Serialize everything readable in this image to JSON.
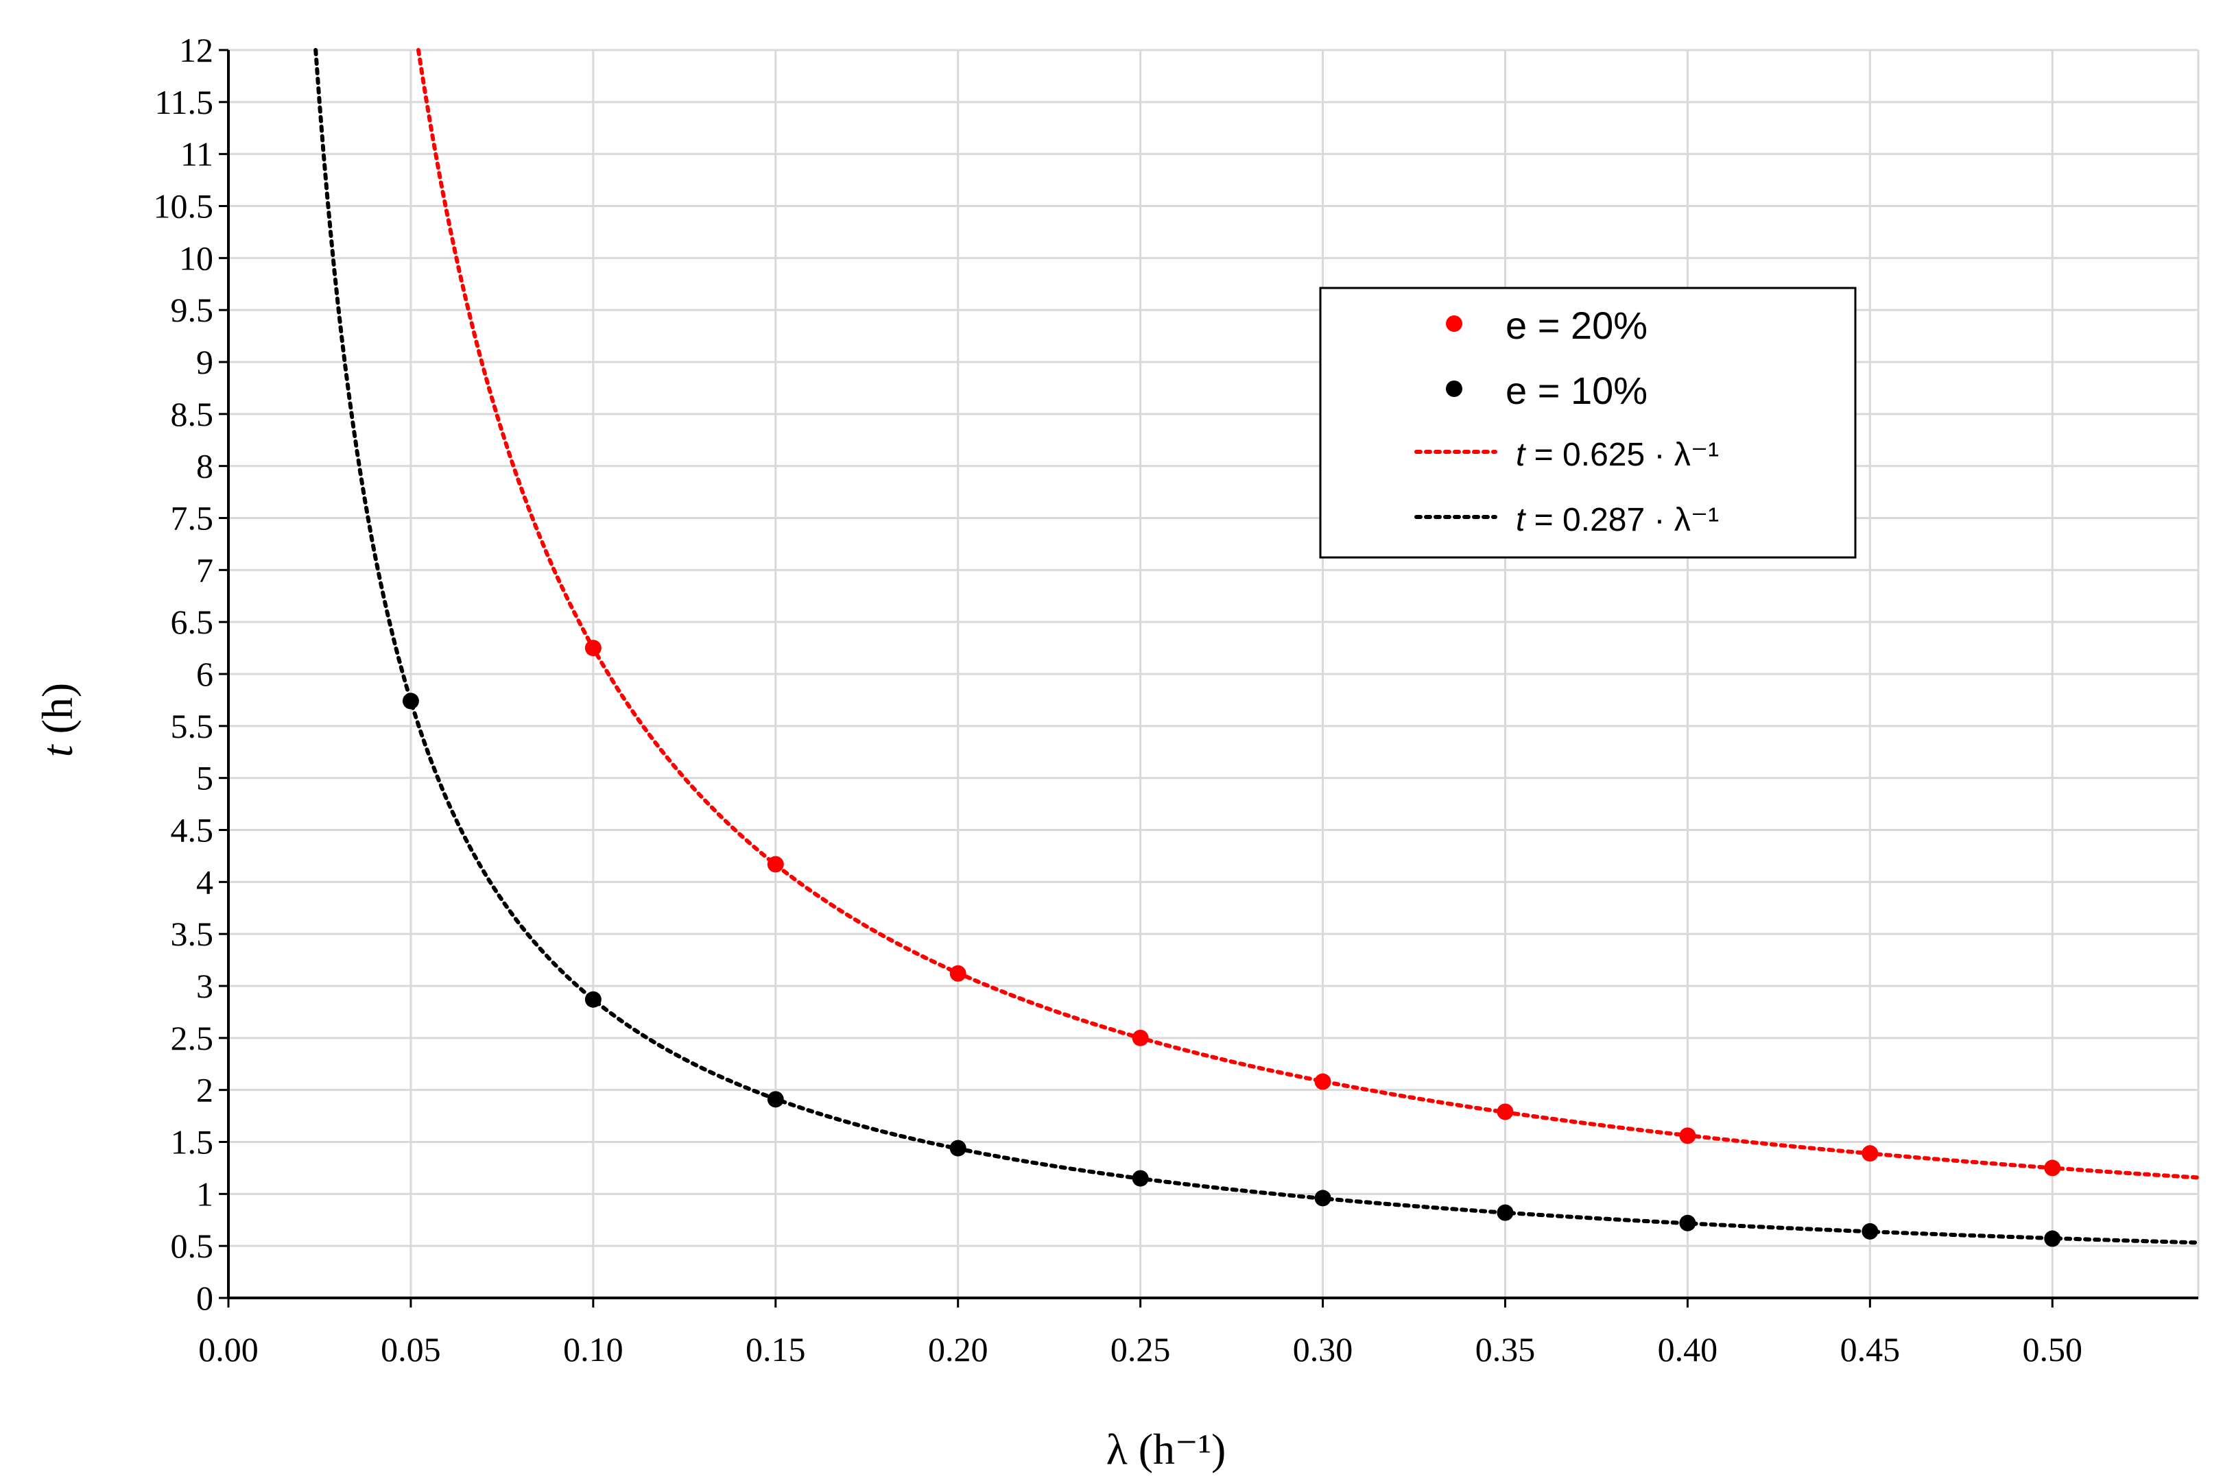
{
  "chart_data": {
    "type": "scatter",
    "title": "",
    "xlabel": "λ (h⁻¹)",
    "ylabel": "t (h)",
    "xlim": [
      0,
      0.54
    ],
    "ylim": [
      0,
      12
    ],
    "x_ticks": [
      "0.00",
      "0.05",
      "0.10",
      "0.15",
      "0.20",
      "0.25",
      "0.30",
      "0.35",
      "0.40",
      "0.45",
      "0.50"
    ],
    "y_ticks": [
      "0",
      "0.5",
      "1",
      "1.5",
      "2",
      "2.5",
      "3",
      "3.5",
      "4",
      "4.5",
      "5",
      "5.5",
      "6",
      "6.5",
      "7",
      "7.5",
      "8",
      "8.5",
      "9",
      "9.5",
      "10",
      "10.5",
      "11",
      "11.5",
      "12"
    ],
    "grid": true,
    "legend_position": "upper-center-right",
    "series": [
      {
        "name": "e = 20%",
        "kind": "points",
        "color": "#ff0000",
        "x": [
          0.1,
          0.15,
          0.2,
          0.25,
          0.3,
          0.35,
          0.4,
          0.45,
          0.5
        ],
        "y": [
          6.25,
          4.17,
          3.12,
          2.5,
          2.08,
          1.79,
          1.56,
          1.39,
          1.25
        ]
      },
      {
        "name": "e = 10%",
        "kind": "points",
        "color": "#000000",
        "x": [
          0.05,
          0.1,
          0.15,
          0.2,
          0.25,
          0.3,
          0.35,
          0.4,
          0.45,
          0.5
        ],
        "y": [
          5.74,
          2.87,
          1.91,
          1.44,
          1.15,
          0.96,
          0.82,
          0.72,
          0.64,
          0.57
        ]
      },
      {
        "name": "t = 0.625 · λ⁻¹",
        "kind": "fit",
        "color": "#ff0000",
        "coefficient": 0.625,
        "exponent": -1
      },
      {
        "name": "t = 0.287 · λ⁻¹",
        "kind": "fit",
        "color": "#000000",
        "coefficient": 0.287,
        "exponent": -1
      }
    ],
    "legend": {
      "entries": [
        {
          "label": "e = 20%"
        },
        {
          "label": "e = 10%"
        },
        {
          "label_var": "t",
          "label_rest": " = 0.625 · λ⁻¹"
        },
        {
          "label_var": "t",
          "label_rest": " = 0.287 · λ⁻¹"
        }
      ]
    }
  }
}
